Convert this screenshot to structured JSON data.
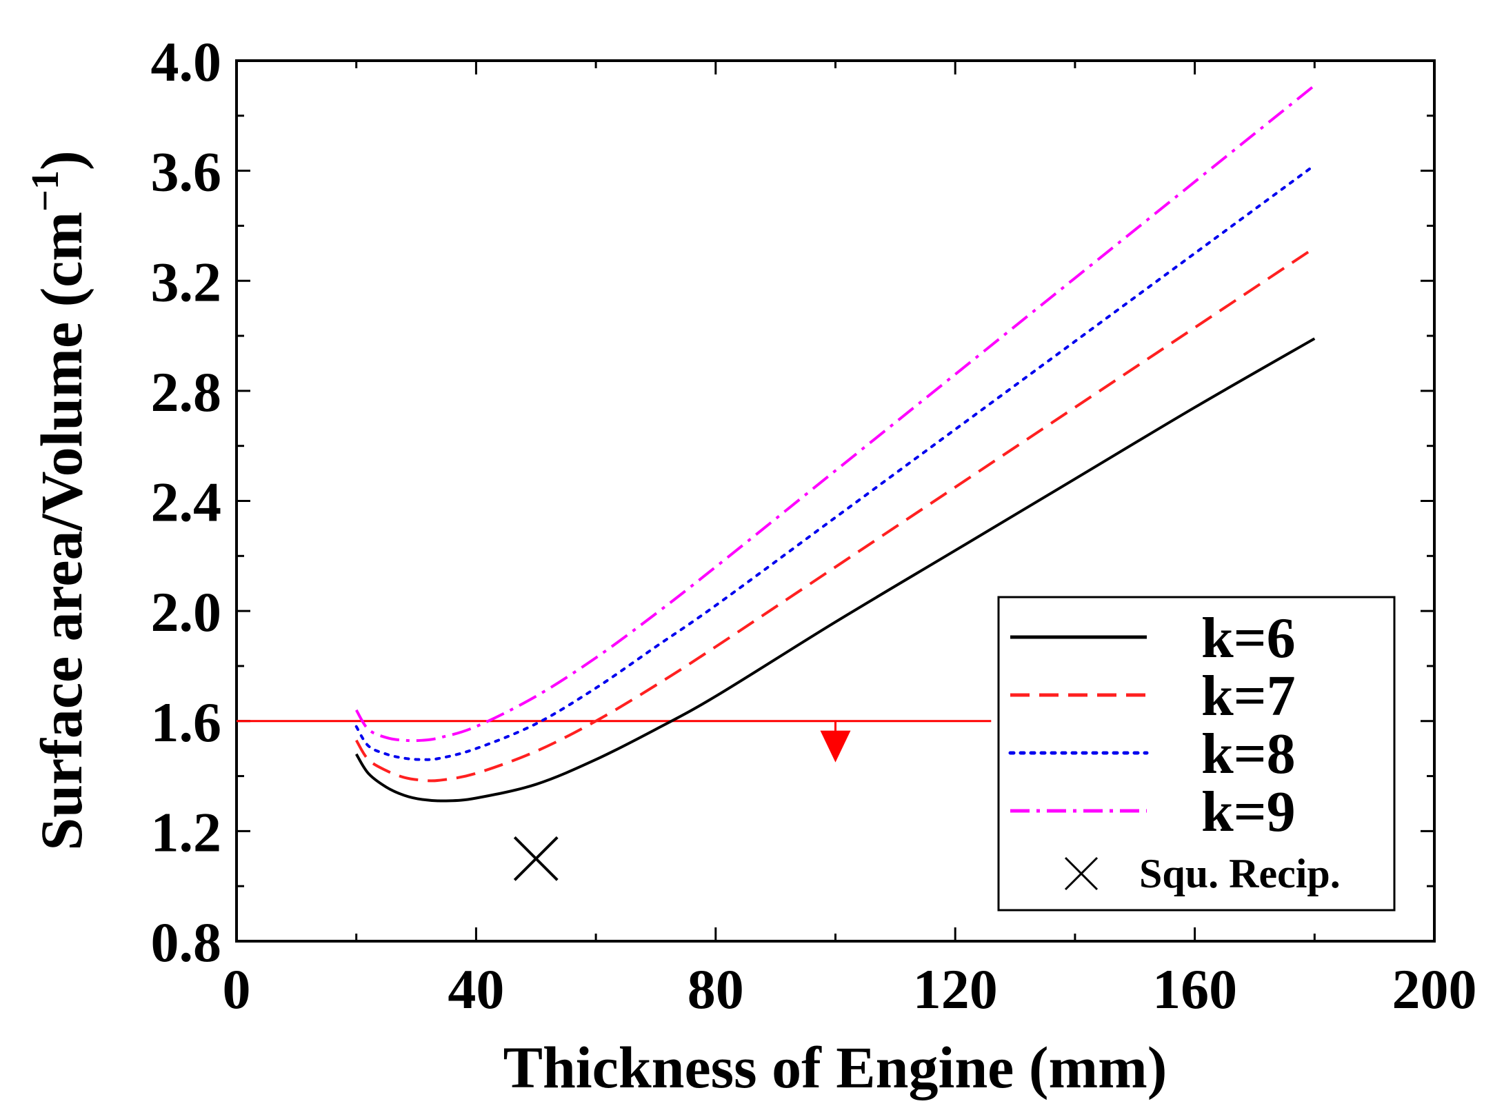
{
  "chart_data": {
    "type": "line",
    "title": "",
    "xlabel": "Thickness of Engine (mm)",
    "ylabel_main": "Surface area/Volume (cm",
    "ylabel_sup": "−1",
    "ylabel_close": ")",
    "xlim": [
      0,
      200
    ],
    "ylim": [
      0.8,
      4.0
    ],
    "xticks": [
      0,
      40,
      80,
      120,
      160,
      200
    ],
    "xtick_labels": [
      "0",
      "40",
      "80",
      "120",
      "160",
      "200"
    ],
    "yticks": [
      0.8,
      1.2,
      1.6,
      2.0,
      2.4,
      2.8,
      3.2,
      3.6,
      4.0
    ],
    "ytick_labels": [
      "0.8",
      "1.2",
      "1.6",
      "2.0",
      "2.4",
      "2.8",
      "3.2",
      "3.6",
      "4.0"
    ],
    "series": [
      {
        "name": "k=6",
        "color": "#000000",
        "style": "solid",
        "x": [
          20,
          22,
          25,
          28,
          31,
          35,
          40,
          50,
          60,
          70,
          80,
          100,
          120,
          140,
          160,
          180
        ],
        "y": [
          1.48,
          1.41,
          1.36,
          1.33,
          1.315,
          1.31,
          1.32,
          1.37,
          1.46,
          1.57,
          1.69,
          1.96,
          2.22,
          2.48,
          2.74,
          2.99
        ]
      },
      {
        "name": "k=7",
        "color": "#ff2020",
        "style": "dashed",
        "x": [
          20,
          22,
          25,
          28,
          31,
          34,
          40,
          50,
          60,
          70,
          80,
          100,
          120,
          140,
          160,
          180
        ],
        "y": [
          1.53,
          1.46,
          1.42,
          1.395,
          1.385,
          1.385,
          1.41,
          1.49,
          1.6,
          1.73,
          1.87,
          2.16,
          2.45,
          2.74,
          3.03,
          3.32
        ]
      },
      {
        "name": "k=8",
        "color": "#0000ee",
        "style": "dotted",
        "x": [
          20,
          22,
          25,
          28,
          31,
          34,
          40,
          50,
          60,
          70,
          80,
          100,
          120,
          140,
          160,
          180
        ],
        "y": [
          1.58,
          1.51,
          1.48,
          1.465,
          1.46,
          1.465,
          1.5,
          1.59,
          1.72,
          1.87,
          2.02,
          2.34,
          2.66,
          2.98,
          3.3,
          3.62
        ]
      },
      {
        "name": "k=9",
        "color": "#ff00ff",
        "style": "dashdot",
        "x": [
          20,
          22,
          25,
          28,
          31,
          34,
          40,
          50,
          60,
          70,
          80,
          100,
          120,
          140,
          160,
          180
        ],
        "y": [
          1.64,
          1.57,
          1.54,
          1.53,
          1.53,
          1.54,
          1.58,
          1.69,
          1.83,
          1.99,
          2.16,
          2.51,
          2.86,
          3.21,
          3.56,
          3.91
        ]
      }
    ],
    "marker": {
      "name": "Squ. Recip.",
      "symbol": "x",
      "x": 50,
      "y": 1.1,
      "color": "#000000"
    },
    "threshold": {
      "y": 1.6,
      "x_end": 126,
      "color": "#ff0000",
      "arrow_x": 100,
      "arrow_to_y": 1.46
    },
    "legend": {
      "position": "lower-right"
    }
  }
}
